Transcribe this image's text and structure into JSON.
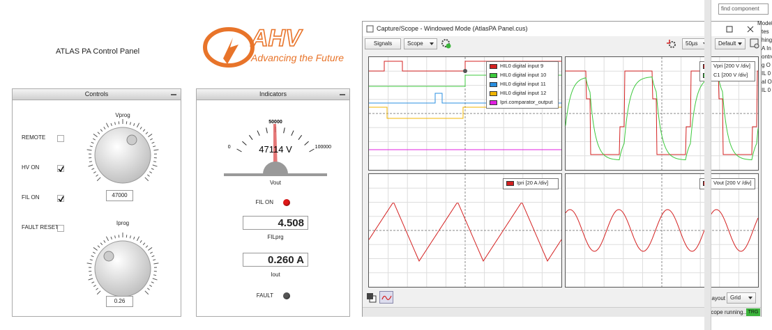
{
  "panel_title": "ATLAS PA Control Panel",
  "logo": {
    "mark": "AHV",
    "tagline": "Advancing the Future"
  },
  "controls": {
    "title": "Controls",
    "checkboxes": [
      {
        "label": "REMOTE",
        "checked": false
      },
      {
        "label": "HV ON",
        "checked": true
      },
      {
        "label": "FIL ON",
        "checked": true
      },
      {
        "label": "FAULT RESET",
        "checked": false
      }
    ],
    "knobs": [
      {
        "label": "Vprog",
        "value": "47000"
      },
      {
        "label": "Iprog",
        "value": "0.26"
      }
    ]
  },
  "indicators": {
    "title": "Indicators",
    "gauge": {
      "ticks": [
        "0",
        "50000",
        "100000"
      ],
      "reading": "47114 V",
      "label": "Vout"
    },
    "leds": [
      {
        "label": "FIL ON",
        "color": "#e01818"
      },
      {
        "label": "FAULT",
        "color": "#555555"
      }
    ],
    "displays": [
      {
        "value": "4.508",
        "label": "FILprg"
      },
      {
        "value": "0.260 A",
        "label": "Iout"
      }
    ]
  },
  "scope": {
    "title": "Capture/Scope - Windowed Mode (AtlasPA Panel.cus)",
    "signals_button": "Signals",
    "mode": "Scope",
    "timebase": "50µs",
    "preset": "Default",
    "plots": [
      {
        "legend": [
          {
            "name": "HIL0 digital input 9",
            "color": "#d42020"
          },
          {
            "name": "HIL0 digital input 10",
            "color": "#3cc83c"
          },
          {
            "name": "HIL0 digital input 11",
            "color": "#2a8fe0"
          },
          {
            "name": "HIL0 digital input 12",
            "color": "#f0b400"
          },
          {
            "name": "Ipri.comparator_output",
            "color": "#e020e0"
          }
        ]
      },
      {
        "legend": [
          {
            "name": "Vpri [200 V /div]",
            "color": "#d42020"
          },
          {
            "name": "C1 [200 V /div]",
            "color": "#3cc83c"
          }
        ]
      },
      {
        "legend": [
          {
            "name": "Ipri [20 A /div]",
            "color": "#d42020"
          }
        ]
      },
      {
        "legend": [
          {
            "name": "Vout [200 V /div]",
            "color": "#d42020"
          }
        ]
      }
    ],
    "layout_label": "Layout",
    "layout": "Grid",
    "status": "Scope running...",
    "trigger": "TRG"
  },
  "sidebar": {
    "search_placeholder": "find component",
    "items": [
      "Model Contro",
      "tes",
      "hing",
      "A In",
      "ontro",
      "g O",
      "IL 0",
      "al Ou",
      "IL 0"
    ]
  }
}
